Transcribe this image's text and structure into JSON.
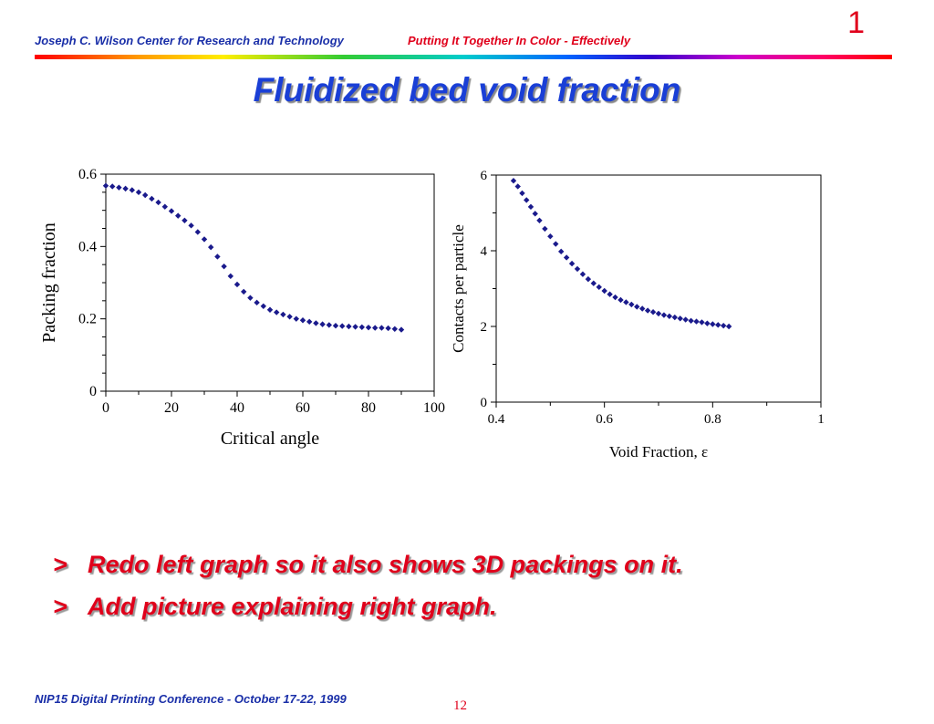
{
  "header": {
    "left": "Joseph C. Wilson Center for Research and Technology",
    "right": "Putting It Together In Color - Effectively",
    "slide_number": "1"
  },
  "title": "Fluidized bed void fraction",
  "chart_data": [
    {
      "type": "scatter",
      "xlabel": "Critical angle",
      "ylabel": "Packing fraction",
      "xlim": [
        0,
        100
      ],
      "ylim": [
        0,
        0.6
      ],
      "xticks": [
        "0",
        "20",
        "40",
        "60",
        "80",
        "100"
      ],
      "yticks": [
        "0",
        "0.2",
        "0.4",
        "0.6"
      ],
      "marker_color": "#1a1a8c",
      "grid": false,
      "x": [
        0,
        2,
        4,
        6,
        8,
        10,
        12,
        14,
        16,
        18,
        20,
        22,
        24,
        26,
        28,
        30,
        32,
        34,
        36,
        38,
        40,
        42,
        44,
        46,
        48,
        50,
        52,
        54,
        56,
        58,
        60,
        62,
        64,
        66,
        68,
        70,
        72,
        74,
        76,
        78,
        80,
        82,
        84,
        86,
        88,
        90
      ],
      "y": [
        0.568,
        0.566,
        0.563,
        0.56,
        0.556,
        0.55,
        0.542,
        0.532,
        0.522,
        0.51,
        0.498,
        0.485,
        0.472,
        0.458,
        0.44,
        0.42,
        0.398,
        0.372,
        0.345,
        0.318,
        0.295,
        0.275,
        0.258,
        0.245,
        0.235,
        0.225,
        0.218,
        0.212,
        0.206,
        0.2,
        0.196,
        0.192,
        0.188,
        0.185,
        0.183,
        0.181,
        0.18,
        0.179,
        0.178,
        0.177,
        0.176,
        0.175,
        0.175,
        0.174,
        0.172,
        0.17
      ]
    },
    {
      "type": "scatter",
      "xlabel": "Void Fraction, ε",
      "ylabel": "Contacts per particle",
      "xlim": [
        0.4,
        1
      ],
      "ylim": [
        0,
        6
      ],
      "xticks": [
        "0.4",
        "0.6",
        "0.8",
        "1"
      ],
      "yticks": [
        "0",
        "2",
        "4",
        "6"
      ],
      "marker_color": "#1a1a8c",
      "grid": false,
      "x": [
        0.432,
        0.44,
        0.448,
        0.456,
        0.464,
        0.472,
        0.48,
        0.49,
        0.5,
        0.51,
        0.52,
        0.53,
        0.54,
        0.55,
        0.56,
        0.57,
        0.58,
        0.59,
        0.6,
        0.61,
        0.62,
        0.63,
        0.64,
        0.65,
        0.66,
        0.67,
        0.68,
        0.69,
        0.7,
        0.71,
        0.72,
        0.73,
        0.74,
        0.75,
        0.76,
        0.77,
        0.78,
        0.79,
        0.8,
        0.81,
        0.82,
        0.83
      ],
      "y": [
        5.85,
        5.7,
        5.52,
        5.34,
        5.16,
        4.98,
        4.8,
        4.58,
        4.38,
        4.18,
        3.98,
        3.82,
        3.66,
        3.52,
        3.38,
        3.25,
        3.14,
        3.04,
        2.94,
        2.85,
        2.77,
        2.7,
        2.64,
        2.58,
        2.52,
        2.47,
        2.42,
        2.38,
        2.34,
        2.3,
        2.27,
        2.24,
        2.21,
        2.18,
        2.15,
        2.13,
        2.11,
        2.08,
        2.06,
        2.04,
        2.02,
        2.0
      ]
    }
  ],
  "bullets": [
    {
      "marker": ">",
      "text": "Redo left graph so it also shows 3D packings on it."
    },
    {
      "marker": ">",
      "text": "Add picture explaining right graph."
    }
  ],
  "footer": {
    "left": "NIP15 Digital Printing Conference - October 17-22, 1999",
    "page_number": "12"
  }
}
